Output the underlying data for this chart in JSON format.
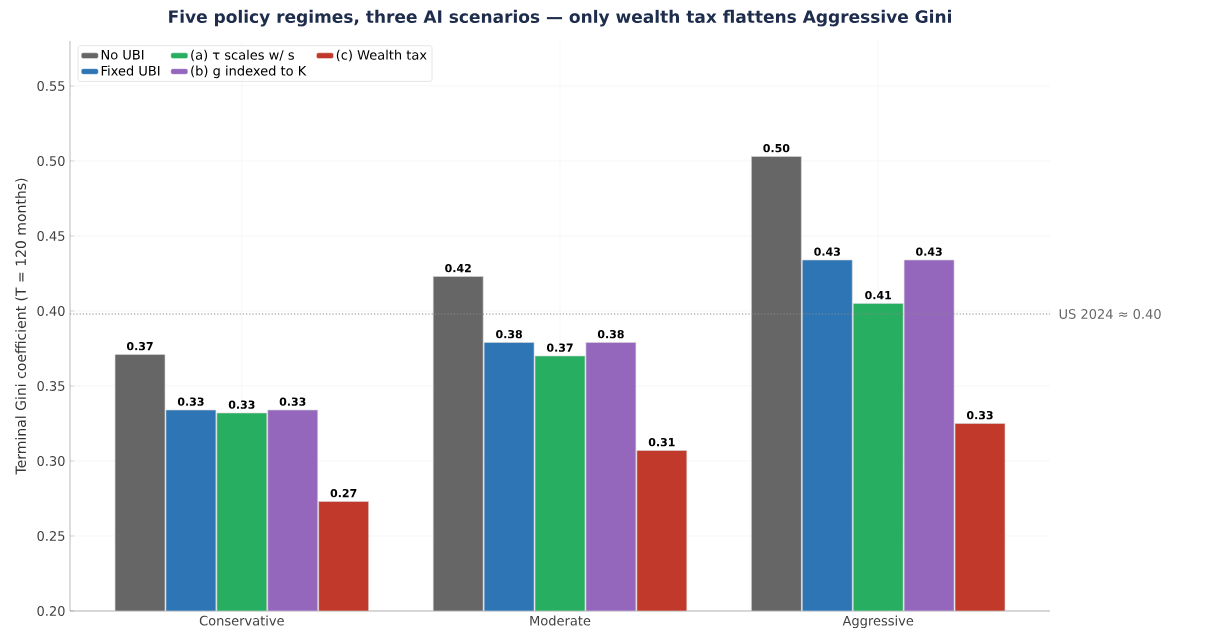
{
  "chart_data": {
    "type": "bar",
    "title": "Five policy regimes, three AI scenarios — only wealth tax flattens Aggressive Gini",
    "ylabel": "Terminal Gini coefficient (T = 120 months)",
    "categories": [
      "Conservative",
      "Moderate",
      "Aggressive"
    ],
    "series": [
      {
        "name": "No UBI",
        "color": "#666666",
        "values": [
          0.371,
          0.423,
          0.503
        ],
        "value_labels": [
          "0.37",
          "0.42",
          "0.50"
        ]
      },
      {
        "name": "Fixed UBI",
        "color": "#2e75b6",
        "values": [
          0.334,
          0.379,
          0.434
        ],
        "value_labels": [
          "0.33",
          "0.38",
          "0.43"
        ]
      },
      {
        "name": "(a) τ scales w/ s",
        "color": "#27ae60",
        "values": [
          0.332,
          0.37,
          0.405
        ],
        "value_labels": [
          "0.33",
          "0.37",
          "0.41"
        ]
      },
      {
        "name": "(b) g indexed to K",
        "color": "#9467bd",
        "values": [
          0.334,
          0.379,
          0.434
        ],
        "value_labels": [
          "0.33",
          "0.38",
          "0.43"
        ]
      },
      {
        "name": "(c) Wealth tax",
        "color": "#c0392b",
        "values": [
          0.273,
          0.307,
          0.325
        ],
        "value_labels": [
          "0.27",
          "0.31",
          "0.33"
        ]
      }
    ],
    "ylim": [
      0.2,
      0.58
    ],
    "yticks": [
      {
        "value": 0.2,
        "label": "0.20"
      },
      {
        "value": 0.25,
        "label": "0.25"
      },
      {
        "value": 0.3,
        "label": "0.30"
      },
      {
        "value": 0.35,
        "label": "0.35"
      },
      {
        "value": 0.4,
        "label": "0.40"
      },
      {
        "value": 0.45,
        "label": "0.45"
      },
      {
        "value": 0.5,
        "label": "0.50"
      },
      {
        "value": 0.55,
        "label": "0.55"
      }
    ],
    "ref_lines": [
      {
        "axis": "y",
        "value": 0.398,
        "label": "US 2024 ≈ 0.40",
        "color": "#888888",
        "line_style": "dotted"
      }
    ],
    "grid": true,
    "legend": "top left"
  }
}
